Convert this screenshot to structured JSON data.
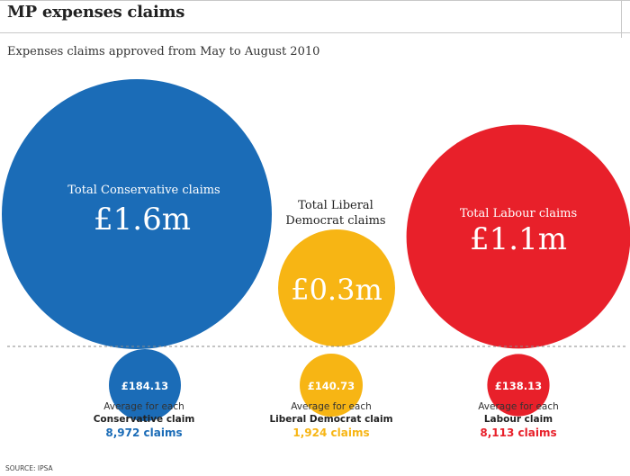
{
  "header": {
    "title": "MP expenses claims",
    "subtitle": "Expenses claims approved from May to August 2010"
  },
  "chart_data": {
    "type": "bubble",
    "title": "MP expenses claims",
    "subtitle": "Expenses claims approved from May to August 2010",
    "parties": [
      {
        "key": "conservative",
        "total_label": "Total Conservative claims",
        "total_value_text": "£1.6m",
        "total_millions": 1.6,
        "average_text": "£184.13",
        "average": 184.13,
        "avg_caption_line1": "Average for each",
        "avg_caption_line2": "Conservative claim",
        "claims_text": "8,972 claims",
        "claims": 8972,
        "color": "#1b6cb7"
      },
      {
        "key": "liberal-democrat",
        "total_label_line1": "Total Liberal",
        "total_label_line2": "Democrat claims",
        "total_value_text": "£0.3m",
        "total_millions": 0.3,
        "average_text": "£140.73",
        "average": 140.73,
        "avg_caption_line1": "Average for each",
        "avg_caption_line2": "Liberal Democrat claim",
        "claims_text": "1,924 claims",
        "claims": 1924,
        "color": "#f7b514"
      },
      {
        "key": "labour",
        "total_label": "Total Labour claims",
        "total_value_text": "£1.1m",
        "total_millions": 1.1,
        "average_text": "£138.13",
        "average": 138.13,
        "avg_caption_line1": "Average for each",
        "avg_caption_line2": "Labour claim",
        "claims_text": "8,113 claims",
        "claims": 8113,
        "color": "#e8202a"
      }
    ]
  },
  "footer": {
    "source": "SOURCE: IPSA"
  }
}
